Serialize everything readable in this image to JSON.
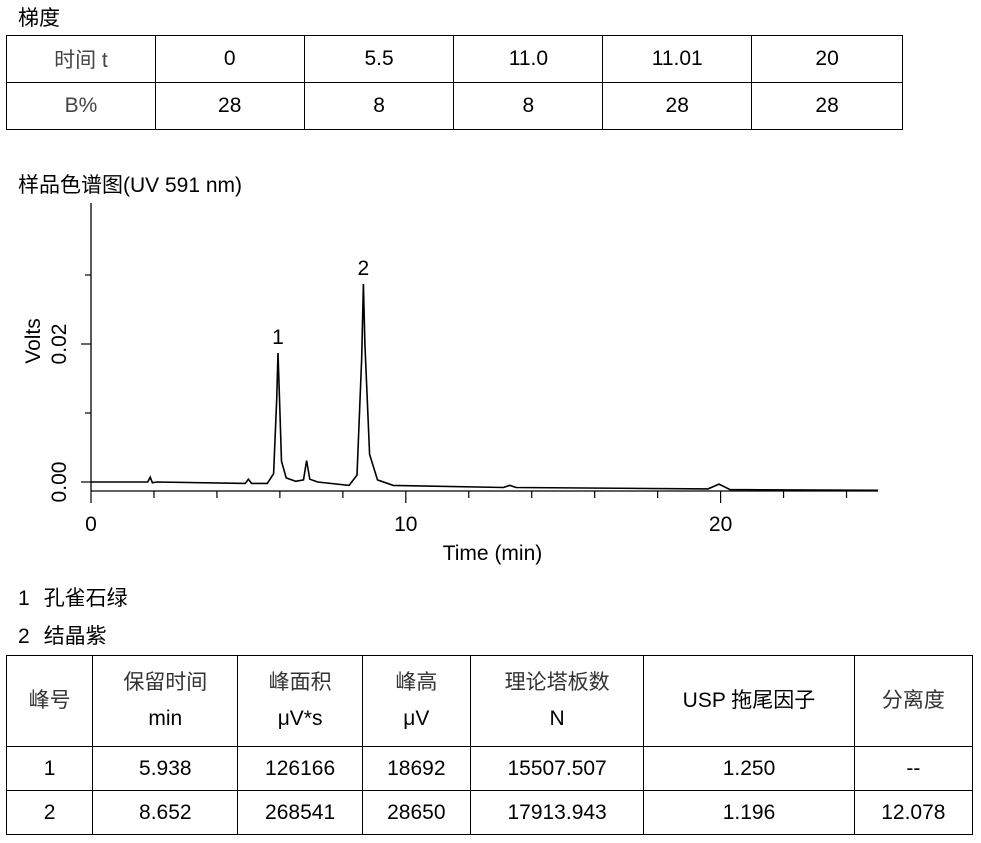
{
  "gradient": {
    "title": "梯度",
    "row_labels": [
      "时间 t",
      "B%"
    ],
    "time": [
      "0",
      "5.5",
      "11.0",
      "11.01",
      "20"
    ],
    "b_percent": [
      "28",
      "8",
      "8",
      "28",
      "28"
    ]
  },
  "chromatogram_title": "样品色谱图(UV 591 nm)",
  "chart_data": {
    "type": "line",
    "xlabel": "Time (min)",
    "ylabel": "Volts",
    "xlim": [
      0,
      25
    ],
    "ylim": [
      -0.002,
      0.04
    ],
    "x_ticks": [
      "0",
      "10",
      "20"
    ],
    "y_ticks": [
      "0.00",
      "0.02"
    ],
    "peaks": [
      {
        "label": "1",
        "rt": 5.938,
        "height": 0.0187
      },
      {
        "label": "2",
        "rt": 8.652,
        "height": 0.0287
      }
    ],
    "minor_features_min": [
      1.85,
      5.0,
      6.85,
      13.3,
      19.95
    ],
    "series": [
      {
        "x": [
          0,
          1.7,
          1.8,
          1.88,
          1.95,
          2.1,
          4.9,
          5.0,
          5.1,
          5.6,
          5.8,
          5.9,
          5.94,
          5.98,
          6.05,
          6.2,
          6.5,
          6.75,
          6.85,
          6.95,
          7.2,
          8.2,
          8.45,
          8.6,
          8.652,
          8.7,
          8.85,
          9.1,
          9.6,
          13.1,
          13.3,
          13.5,
          19.6,
          19.95,
          20.3,
          25
        ],
        "y": [
          0,
          0,
          0,
          0.0007,
          -0.0001,
          0,
          -0.0002,
          0.0004,
          -0.0002,
          -0.0002,
          0.0012,
          0.012,
          0.0187,
          0.013,
          0.003,
          0.0006,
          0.0001,
          0.0003,
          0.0031,
          0.0004,
          0,
          -0.0005,
          0.001,
          0.018,
          0.0287,
          0.02,
          0.004,
          0.0003,
          -0.0005,
          -0.0008,
          -0.0005,
          -0.0008,
          -0.001,
          -0.0003,
          -0.0011,
          -0.0012
        ]
      }
    ]
  },
  "legend": [
    {
      "num": "1",
      "name": "孔雀石绿"
    },
    {
      "num": "2",
      "name": "结晶紫"
    }
  ],
  "results": {
    "headers": [
      {
        "l1": "峰号",
        "l2": ""
      },
      {
        "l1": "保留时间",
        "l2": "min"
      },
      {
        "l1": "峰面积",
        "l2": "μV*s"
      },
      {
        "l1": "峰高",
        "l2": "μV"
      },
      {
        "l1": "理论塔板数",
        "l2": "N"
      },
      {
        "l1": "USP 拖尾因子",
        "l2": ""
      },
      {
        "l1": "分离度",
        "l2": ""
      }
    ],
    "rows": [
      [
        "1",
        "5.938",
        "126166",
        "18692",
        "15507.507",
        "1.250",
        "--"
      ],
      [
        "2",
        "8.652",
        "268541",
        "28650",
        "17913.943",
        "1.196",
        "12.078"
      ]
    ]
  }
}
